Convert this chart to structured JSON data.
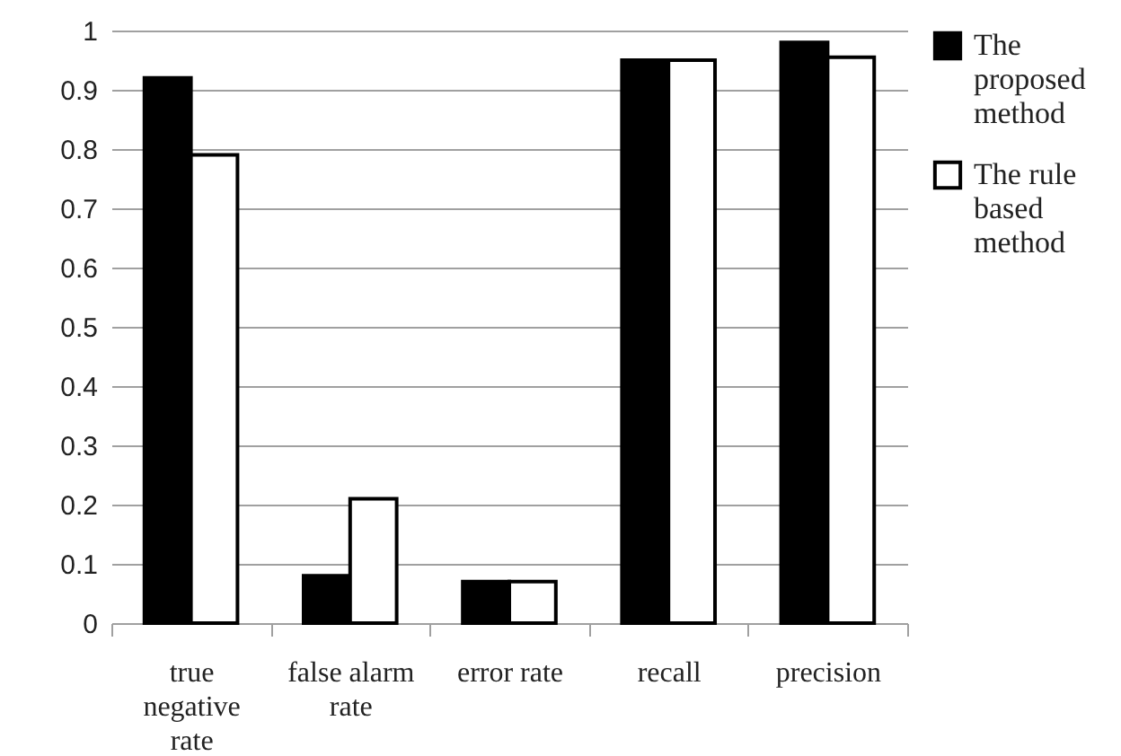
{
  "chart_data": {
    "type": "bar",
    "categories": [
      "true negative rate",
      "false alarm rate",
      "error rate",
      "recall",
      "precision"
    ],
    "series": [
      {
        "name": "The proposed method",
        "color": "#000000",
        "values": [
          0.92,
          0.08,
          0.07,
          0.95,
          0.98
        ]
      },
      {
        "name": "The rule based method",
        "color": "#ffffff",
        "values": [
          0.79,
          0.21,
          0.07,
          0.95,
          0.955
        ]
      }
    ],
    "ylim": [
      0,
      1
    ],
    "yticks": [
      0,
      0.1,
      0.2,
      0.3,
      0.4,
      0.5,
      0.6,
      0.7,
      0.8,
      0.9,
      1
    ],
    "grid": "y",
    "legend": "right"
  }
}
